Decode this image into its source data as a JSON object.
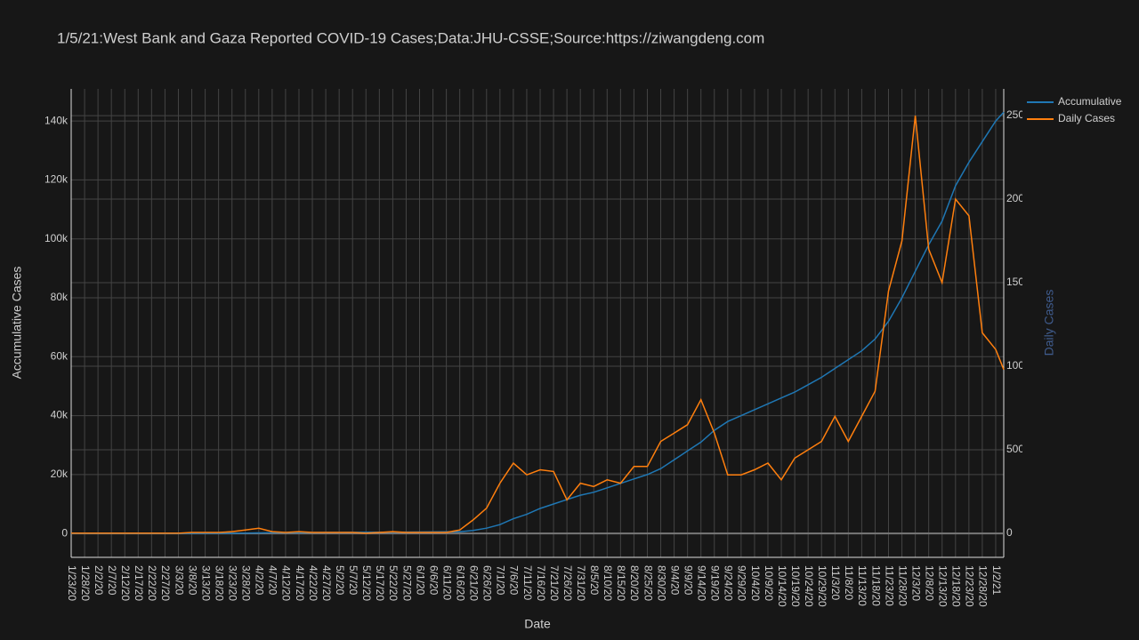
{
  "chart_data": {
    "type": "line",
    "title": "1/5/21:West Bank and Gaza Reported COVID-19 Cases;Data:JHU-CSSE;Source:https://ziwangdeng.com",
    "x_label": "Date",
    "y_label": "Accumulative Cases",
    "y2_label": "Daily Cases",
    "x": [
      "1/23/20",
      "1/28/20",
      "2/2/20",
      "2/7/20",
      "2/12/20",
      "2/17/20",
      "2/22/20",
      "2/27/20",
      "3/3/20",
      "3/8/20",
      "3/13/20",
      "3/18/20",
      "3/23/20",
      "3/28/20",
      "4/2/20",
      "4/7/20",
      "4/12/20",
      "4/17/20",
      "4/22/20",
      "4/27/20",
      "5/2/20",
      "5/7/20",
      "5/12/20",
      "5/17/20",
      "5/22/20",
      "5/27/20",
      "6/1/20",
      "6/6/20",
      "6/11/20",
      "6/16/20",
      "6/21/20",
      "6/26/20",
      "7/1/20",
      "7/6/20",
      "7/11/20",
      "7/16/20",
      "7/21/20",
      "7/26/20",
      "7/31/20",
      "8/5/20",
      "8/10/20",
      "8/15/20",
      "8/20/20",
      "8/25/20",
      "8/30/20",
      "9/4/20",
      "9/9/20",
      "9/14/20",
      "9/19/20",
      "9/24/20",
      "9/29/20",
      "10/4/20",
      "10/9/20",
      "10/14/20",
      "10/19/20",
      "10/24/20",
      "10/29/20",
      "11/3/20",
      "11/8/20",
      "11/13/20",
      "11/18/20",
      "11/23/20",
      "11/28/20",
      "12/3/20",
      "12/8/20",
      "12/13/20",
      "12/18/20",
      "12/23/20",
      "12/28/20",
      "1/2/21",
      "1/5/21"
    ],
    "xlim": [
      "1/23/20",
      "1/5/21"
    ],
    "xticks": [
      "1/23/20",
      "1/28/20",
      "2/2/20",
      "2/7/20",
      "2/12/20",
      "2/17/20",
      "2/22/20",
      "2/27/20",
      "3/3/20",
      "3/8/20",
      "3/13/20",
      "3/18/20",
      "3/23/20",
      "3/28/20",
      "4/2/20",
      "4/7/20",
      "4/12/20",
      "4/17/20",
      "4/22/20",
      "4/27/20",
      "5/2/20",
      "5/7/20",
      "5/12/20",
      "5/17/20",
      "5/22/20",
      "5/27/20",
      "6/1/20",
      "6/6/20",
      "6/11/20",
      "6/16/20",
      "6/21/20",
      "6/26/20",
      "7/1/20",
      "7/6/20",
      "7/11/20",
      "7/16/20",
      "7/21/20",
      "7/26/20",
      "7/31/20",
      "8/5/20",
      "8/10/20",
      "8/15/20",
      "8/20/20",
      "8/25/20",
      "8/30/20",
      "9/4/20",
      "9/9/20",
      "9/14/20",
      "9/19/20",
      "9/24/20",
      "9/29/20",
      "10/4/20",
      "10/9/20",
      "10/14/20",
      "10/19/20",
      "10/24/20",
      "10/29/20",
      "11/3/20",
      "11/8/20",
      "11/13/20",
      "11/18/20",
      "11/23/20",
      "11/28/20",
      "12/3/20",
      "12/8/20",
      "12/13/20",
      "12/18/20",
      "12/23/20",
      "12/28/20",
      "1/2/21"
    ],
    "ylim": [
      -8100,
      150900
    ],
    "yticks": [
      0,
      {
        "value": 20000,
        "label": "20k"
      },
      {
        "value": 40000,
        "label": "40k"
      },
      {
        "value": 60000,
        "label": "60k"
      },
      {
        "value": 80000,
        "label": "80k"
      },
      {
        "value": 100000,
        "label": "100k"
      },
      {
        "value": 120000,
        "label": "120k"
      },
      {
        "value": 140000,
        "label": "140k"
      }
    ],
    "y2lim": [
      -144,
      2660
    ],
    "y2ticks": [
      0,
      500,
      1000,
      1500,
      2000,
      2500
    ],
    "grid": true,
    "legend": "outside-top-right",
    "series": [
      {
        "name": "Accumulative",
        "color": "#1f77b4",
        "values": [
          0,
          0,
          0,
          0,
          0,
          0,
          0,
          0,
          0,
          20,
          40,
          50,
          60,
          100,
          200,
          250,
          280,
          300,
          320,
          340,
          360,
          380,
          400,
          420,
          450,
          480,
          500,
          520,
          560,
          600,
          1000,
          1800,
          3000,
          5000,
          6500,
          8500,
          10000,
          11500,
          13000,
          14000,
          15500,
          17000,
          18500,
          20000,
          22000,
          25000,
          28000,
          31000,
          35000,
          38000,
          40000,
          42000,
          44000,
          46000,
          48000,
          50500,
          53000,
          56000,
          59000,
          62000,
          66000,
          72000,
          80000,
          89000,
          98000,
          106000,
          118000,
          126000,
          133000,
          140000,
          143000
        ]
      },
      {
        "name": "Daily Cases",
        "color": "#ff7f0e",
        "axis": "y2",
        "values": [
          0,
          0,
          0,
          0,
          0,
          0,
          0,
          0,
          0,
          5,
          5,
          5,
          10,
          20,
          30,
          10,
          5,
          10,
          5,
          5,
          5,
          5,
          0,
          5,
          10,
          5,
          5,
          5,
          5,
          20,
          80,
          150,
          300,
          420,
          350,
          380,
          370,
          200,
          300,
          280,
          320,
          300,
          400,
          400,
          550,
          600,
          650,
          800,
          600,
          350,
          350,
          380,
          420,
          320,
          450,
          500,
          550,
          700,
          550,
          700,
          850,
          1450,
          1750,
          2500,
          1700,
          1500,
          2000,
          1900,
          1200,
          1100,
          980
        ]
      }
    ]
  }
}
